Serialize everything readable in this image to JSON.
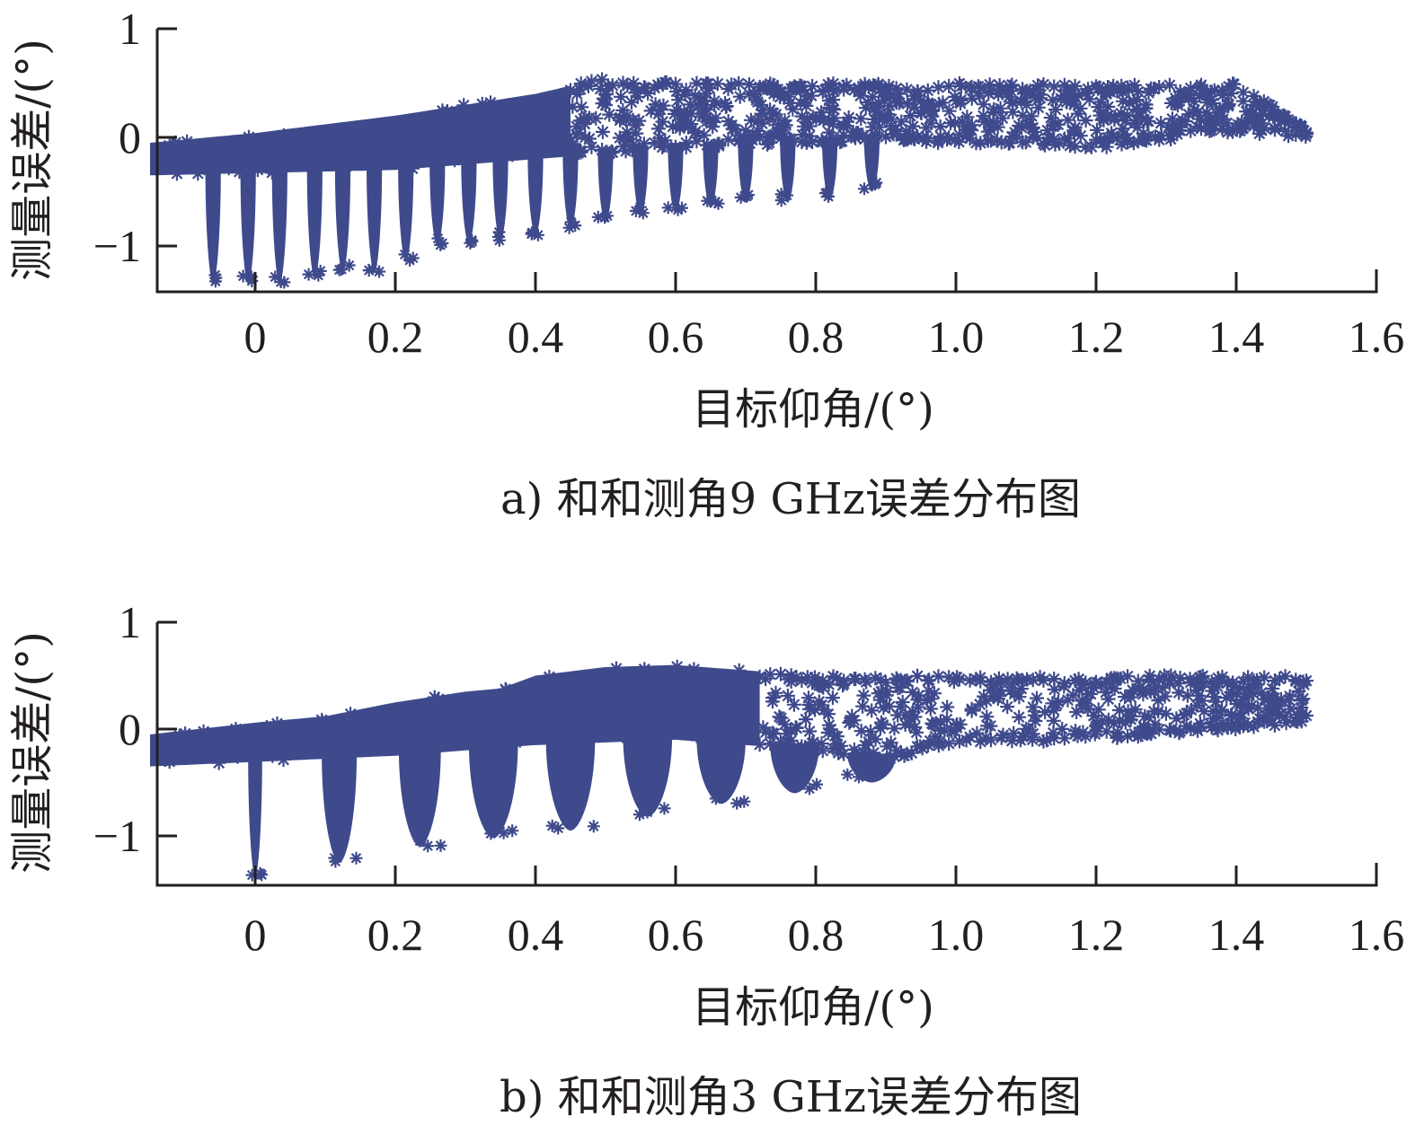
{
  "chart_data": [
    {
      "type": "scatter",
      "caption": "a) 和和测角9 GHz误差分布图",
      "xlabel": "目标仰角/(°)",
      "ylabel": "测量误差/(°)",
      "xlim": [
        -0.14,
        1.6
      ],
      "ylim": [
        -1.55,
        1.0
      ],
      "xticks": [
        0,
        0.2,
        0.4,
        0.6,
        0.8,
        1.0,
        1.2,
        1.4,
        1.6
      ],
      "xtick_labels": [
        "0",
        "0.2",
        "0.4",
        "0.6",
        "0.8",
        "1.0",
        "1.2",
        "1.4",
        "1.6"
      ],
      "yticks": [
        1,
        0,
        -1
      ],
      "ytick_labels": [
        "1",
        "0",
        "−1"
      ],
      "marker": "asterisk",
      "color": "#3f4a8c",
      "x_range": [
        -0.15,
        1.5
      ],
      "upper_envelope": [
        [
          -0.15,
          -0.05
        ],
        [
          0.0,
          0.04
        ],
        [
          0.2,
          0.2
        ],
        [
          0.4,
          0.4
        ],
        [
          0.5,
          0.55
        ],
        [
          0.6,
          0.5
        ],
        [
          0.8,
          0.5
        ],
        [
          1.0,
          0.5
        ],
        [
          1.2,
          0.48
        ],
        [
          1.4,
          0.5
        ],
        [
          1.5,
          0.1
        ]
      ],
      "lower_envelope": [
        [
          -0.15,
          -0.35
        ],
        [
          0.2,
          -0.3
        ],
        [
          0.4,
          -0.2
        ],
        [
          0.6,
          -0.1
        ],
        [
          0.8,
          -0.05
        ],
        [
          1.0,
          -0.05
        ],
        [
          1.2,
          -0.1
        ],
        [
          1.4,
          0.05
        ],
        [
          1.5,
          0.0
        ]
      ],
      "dips": [
        {
          "x": -0.06,
          "min": -1.35
        },
        {
          "x": -0.01,
          "min": -1.35
        },
        {
          "x": 0.035,
          "min": -1.35
        },
        {
          "x": 0.085,
          "min": -1.3
        },
        {
          "x": 0.125,
          "min": -1.25
        },
        {
          "x": 0.17,
          "min": -1.25
        },
        {
          "x": 0.215,
          "min": -1.15
        },
        {
          "x": 0.26,
          "min": -1.0
        },
        {
          "x": 0.305,
          "min": -0.98
        },
        {
          "x": 0.35,
          "min": -0.95
        },
        {
          "x": 0.4,
          "min": -0.9
        },
        {
          "x": 0.45,
          "min": -0.85
        },
        {
          "x": 0.5,
          "min": -0.78
        },
        {
          "x": 0.55,
          "min": -0.72
        },
        {
          "x": 0.6,
          "min": -0.7
        },
        {
          "x": 0.65,
          "min": -0.65
        },
        {
          "x": 0.7,
          "min": -0.6
        },
        {
          "x": 0.76,
          "min": -0.6
        },
        {
          "x": 0.82,
          "min": -0.58
        },
        {
          "x": 0.88,
          "min": -0.5
        }
      ]
    },
    {
      "type": "scatter",
      "caption": "b) 和和测角3 GHz误差分布图",
      "xlabel": "目标仰角/(°)",
      "ylabel": "测量误差/(°)",
      "xlim": [
        -0.14,
        1.6
      ],
      "ylim": [
        -1.55,
        1.0
      ],
      "xticks": [
        0,
        0.2,
        0.4,
        0.6,
        0.8,
        1.0,
        1.2,
        1.4,
        1.6
      ],
      "xtick_labels": [
        "0",
        "0.2",
        "0.4",
        "0.6",
        "0.8",
        "1.0",
        "1.2",
        "1.4",
        "1.6"
      ],
      "yticks": [
        1,
        0,
        -1
      ],
      "ytick_labels": [
        "1",
        "0",
        "−1"
      ],
      "marker": "asterisk",
      "color": "#3f4a8c",
      "x_range": [
        -0.15,
        1.5
      ],
      "upper_envelope": [
        [
          -0.15,
          -0.05
        ],
        [
          0.0,
          0.06
        ],
        [
          0.1,
          0.12
        ],
        [
          0.2,
          0.25
        ],
        [
          0.3,
          0.35
        ],
        [
          0.35,
          0.38
        ],
        [
          0.4,
          0.5
        ],
        [
          0.5,
          0.58
        ],
        [
          0.6,
          0.6
        ],
        [
          0.7,
          0.55
        ],
        [
          0.8,
          0.5
        ],
        [
          1.0,
          0.5
        ],
        [
          1.2,
          0.5
        ],
        [
          1.4,
          0.5
        ],
        [
          1.5,
          0.5
        ]
      ],
      "lower_envelope": [
        [
          -0.15,
          -0.35
        ],
        [
          0.2,
          -0.25
        ],
        [
          0.4,
          -0.15
        ],
        [
          0.6,
          -0.1
        ],
        [
          0.8,
          -0.2
        ],
        [
          0.9,
          -0.3
        ],
        [
          1.0,
          -0.15
        ],
        [
          1.2,
          -0.1
        ],
        [
          1.4,
          0.0
        ],
        [
          1.5,
          0.05
        ]
      ],
      "dips": [
        {
          "x": 0.0,
          "min": -1.38,
          "width": 0.02
        },
        {
          "x": 0.12,
          "min": -1.25,
          "width": 0.05
        },
        {
          "x": 0.235,
          "min": -1.1,
          "width": 0.06
        },
        {
          "x": 0.34,
          "min": -1.02,
          "width": 0.07
        },
        {
          "x": 0.45,
          "min": -0.95,
          "width": 0.07
        },
        {
          "x": 0.56,
          "min": -0.82,
          "width": 0.07
        },
        {
          "x": 0.665,
          "min": -0.7,
          "width": 0.07
        },
        {
          "x": 0.77,
          "min": -0.6,
          "width": 0.07
        },
        {
          "x": 0.88,
          "min": -0.5,
          "width": 0.07
        }
      ]
    }
  ]
}
